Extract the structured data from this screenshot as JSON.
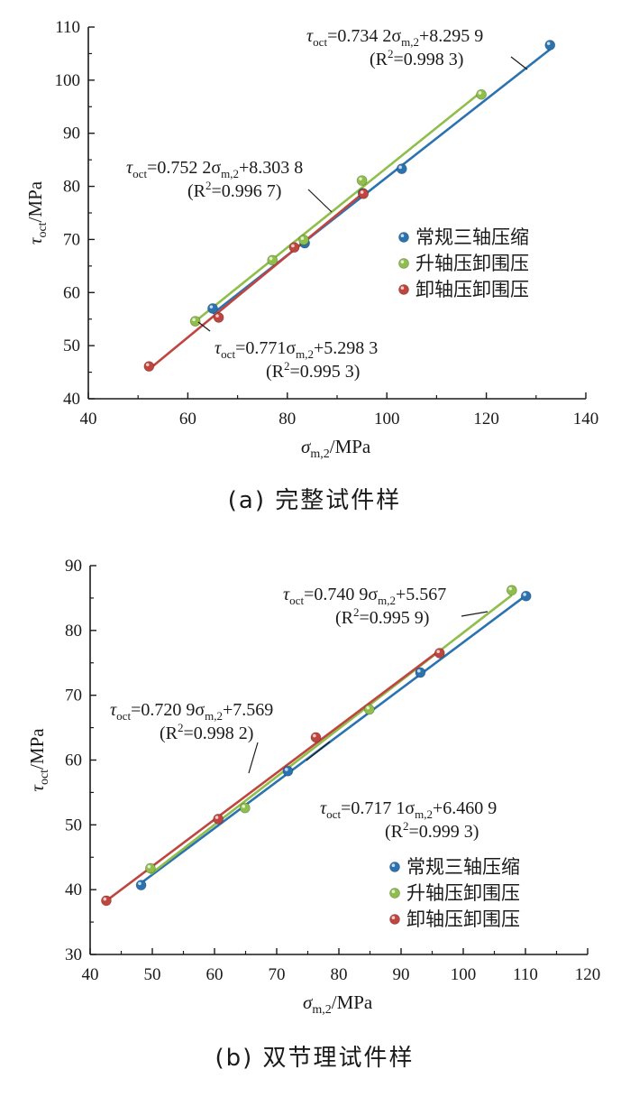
{
  "colors": {
    "blue": "#2b73b0",
    "green": "#8fbf4a",
    "red": "#c0453f",
    "axis": "#1a1a1a"
  },
  "legend": [
    "常规三轴压缩",
    "升轴压卸围压",
    "卸轴压卸围压"
  ],
  "chart_data": [
    {
      "type": "scatter",
      "caption": "(a) 完整试件样",
      "xlabel": "σm,2/MPa",
      "ylabel": "τoct/MPa",
      "xlim": [
        40,
        140
      ],
      "ylim": [
        40,
        110
      ],
      "xticks": [
        40,
        60,
        80,
        100,
        120,
        140
      ],
      "yticks": [
        40,
        50,
        60,
        70,
        80,
        90,
        100,
        110
      ],
      "legend_position": "right",
      "series": [
        {
          "name": "常规三轴压缩",
          "color": "blue",
          "points": [
            [
              65,
              57
            ],
            [
              83.5,
              69.3
            ],
            [
              95.2,
              78.7
            ],
            [
              103,
              83.3
            ],
            [
              132.8,
              106.6
            ]
          ],
          "fit": {
            "slope": 0.7342,
            "intercept": 8.2959,
            "x": [
              65,
              132.8
            ]
          },
          "equation": {
            "prefix": "τ",
            "sub1": "oct",
            "mid": "=0.734 2σ",
            "sub2": "m,2",
            "suffix": "+8.295 9",
            "r2_prefix": "(R",
            "r2_suffix": "=0.998 3)"
          }
        },
        {
          "name": "升轴压卸围压",
          "color": "green",
          "points": [
            [
              61.5,
              54.6
            ],
            [
              77,
              66.1
            ],
            [
              83.3,
              69.9
            ],
            [
              95,
              81.1
            ],
            [
              119,
              97.3
            ]
          ],
          "fit": {
            "slope": 0.7522,
            "intercept": 8.3038,
            "x": [
              61.5,
              119
            ]
          },
          "equation": {
            "prefix": "τ",
            "sub1": "oct",
            "mid": "=0.752 2σ",
            "sub2": "m,2",
            "suffix": "+8.303 8",
            "r2_prefix": "(R",
            "r2_suffix": "=0.996 7)"
          }
        },
        {
          "name": "卸轴压卸围压",
          "color": "red",
          "points": [
            [
              52.2,
              46.1
            ],
            [
              66.2,
              55.3
            ],
            [
              81.4,
              68.5
            ],
            [
              95.3,
              78.6
            ]
          ],
          "fit": {
            "slope": 0.771,
            "intercept": 5.2983,
            "x": [
              52.2,
              95.3
            ]
          },
          "equation": {
            "prefix": "τ",
            "sub1": "oct",
            "mid": "=0.771σ",
            "sub2": "m,2",
            "suffix": "+5.298 3",
            "r2_prefix": "(R",
            "r2_suffix": "=0.995 3)"
          }
        }
      ]
    },
    {
      "type": "scatter",
      "caption": "(b) 双节理试件样",
      "xlabel": "σm,2/MPa",
      "ylabel": "τoct/MPa",
      "xlim": [
        40,
        120
      ],
      "ylim": [
        30,
        90
      ],
      "xticks": [
        40,
        50,
        60,
        70,
        80,
        90,
        100,
        110,
        120
      ],
      "yticks": [
        30,
        40,
        50,
        60,
        70,
        80,
        90
      ],
      "legend_position": "bottom-right",
      "series": [
        {
          "name": "常规三轴压缩",
          "color": "blue",
          "points": [
            [
              48.2,
              40.7
            ],
            [
              71.8,
              58.3
            ],
            [
              93.1,
              73.5
            ],
            [
              110.1,
              85.3
            ]
          ],
          "fit": {
            "slope": 0.7171,
            "intercept": 6.4609,
            "x": [
              48.2,
              110.1
            ]
          },
          "equation": {
            "prefix": "τ",
            "sub1": "oct",
            "mid": "=0.717 1σ",
            "sub2": "m,2",
            "suffix": "+6.460 9",
            "r2_prefix": "(R",
            "r2_suffix": "=0.999 3)"
          }
        },
        {
          "name": "升轴压卸围压",
          "color": "green",
          "points": [
            [
              49.7,
              43.3
            ],
            [
              64.9,
              52.6
            ],
            [
              84.9,
              67.8
            ],
            [
              107.8,
              86.2
            ]
          ],
          "fit": {
            "slope": 0.7409,
            "intercept": 5.567,
            "x": [
              49.7,
              107.8
            ]
          },
          "equation": {
            "prefix": "τ",
            "sub1": "oct",
            "mid": "=0.740 9σ",
            "sub2": "m,2",
            "suffix": "+5.567",
            "r2_prefix": "(R",
            "r2_suffix": "=0.995 9)"
          }
        },
        {
          "name": "卸轴压卸围压",
          "color": "red",
          "points": [
            [
              42.6,
              38.3
            ],
            [
              60.6,
              50.9
            ],
            [
              76.3,
              63.5
            ],
            [
              96.2,
              76.5
            ]
          ],
          "fit": {
            "slope": 0.7209,
            "intercept": 7.569,
            "x": [
              42.6,
              96.2
            ]
          },
          "equation": {
            "prefix": "τ",
            "sub1": "oct",
            "mid": "=0.720 9σ",
            "sub2": "m,2",
            "suffix": "+7.569",
            "r2_prefix": "(R",
            "r2_suffix": "=0.998 2)"
          }
        }
      ]
    }
  ]
}
